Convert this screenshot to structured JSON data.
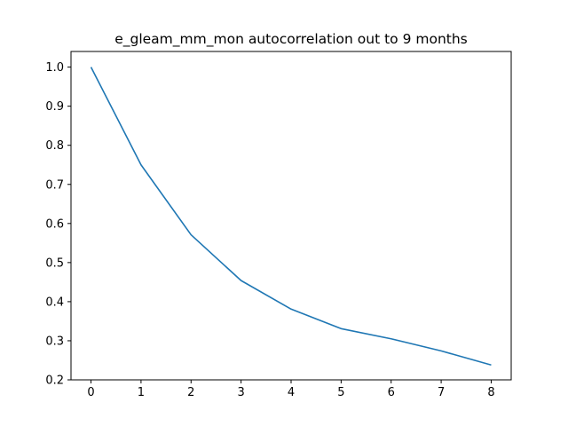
{
  "chart_data": {
    "type": "line",
    "title": "e_gleam_mm_mon autocorrelation out to 9 months",
    "xlabel": "",
    "ylabel": "",
    "x": [
      0,
      1,
      2,
      3,
      4,
      5,
      6,
      7,
      8
    ],
    "series": [
      {
        "values": [
          1.0,
          0.75,
          0.571,
          0.454,
          0.381,
          0.331,
          0.305,
          0.274,
          0.238
        ],
        "color": "#1f77b4"
      }
    ],
    "xlim": [
      -0.4,
      8.4
    ],
    "ylim": [
      0.2,
      1.04
    ],
    "xticks": [
      0,
      1,
      2,
      3,
      4,
      5,
      6,
      7,
      8
    ],
    "xtick_labels": [
      "0",
      "1",
      "2",
      "3",
      "4",
      "5",
      "6",
      "7",
      "8"
    ],
    "yticks": [
      0.2,
      0.3,
      0.4,
      0.5,
      0.6,
      0.7,
      0.8,
      0.9,
      1.0
    ],
    "ytick_labels": [
      "0.2",
      "0.3",
      "0.4",
      "0.5",
      "0.6",
      "0.7",
      "0.8",
      "0.9",
      "1.0"
    ],
    "grid": false,
    "legend": "none"
  }
}
